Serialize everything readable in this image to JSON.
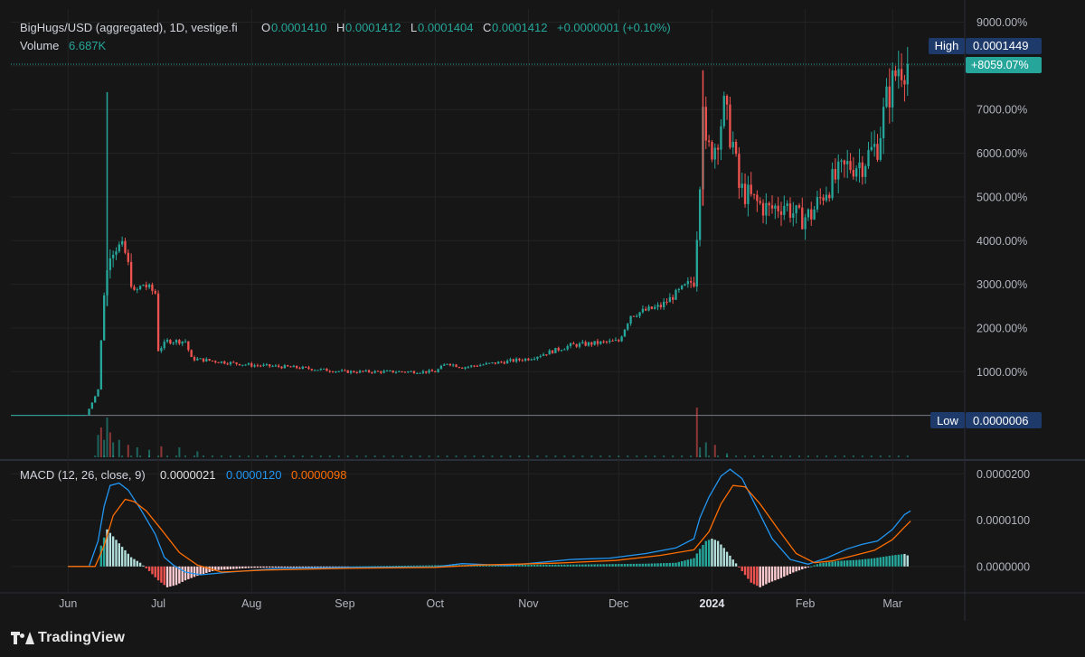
{
  "legend": {
    "symbol": "BigHugs/USD (aggregated), 1D, vestige.fi",
    "o_label": "O",
    "o_value": "0.0001410",
    "h_label": "H",
    "h_value": "0.0001412",
    "l_label": "L",
    "l_value": "0.0001404",
    "c_label": "C",
    "c_value": "0.0001412",
    "change": "+0.0000001 (+0.10%)",
    "volume_label": "Volume",
    "volume_value": "6.687K"
  },
  "macd_legend": {
    "label": "MACD (12, 26, close, 9)",
    "hist_value": "0.0000021",
    "macd_value": "0.0000120",
    "signal_value": "0.0000098"
  },
  "badges": {
    "high_label": "High",
    "high_value": "0.0001449",
    "current_pct": "+8059.07%",
    "low_label": "Low",
    "low_value": "0.0000006"
  },
  "colors": {
    "up": "#26a69a",
    "down": "#ef5350",
    "macd": "#2196f3",
    "signal": "#ff6d00",
    "hist_pos": "#b2dfdb",
    "hist_neg": "#ffcdd2",
    "hist_pos_strong": "#26a69a",
    "hist_neg_strong": "#ef5350"
  },
  "footer": {
    "brand": "TradingView"
  },
  "chart_data": [
    {
      "type": "candlestick",
      "title": "BigHugs/USD (aggregated), 1D, vestige.fi",
      "y_scale": "percent",
      "y_ticks": [
        "9000.00%",
        "7000.00%",
        "6000.00%",
        "5000.00%",
        "4000.00%",
        "3000.00%",
        "2000.00%",
        "1000.00%"
      ],
      "y_tick_values": [
        9000,
        7000,
        6000,
        5000,
        4000,
        3000,
        2000,
        1000
      ],
      "ylim": [
        -1000,
        9300
      ],
      "x_ticks": [
        "Jun",
        "Jul",
        "Aug",
        "Sep",
        "Oct",
        "Nov",
        "Dec",
        "2024",
        "Feb",
        "Mar"
      ],
      "x_tick_dates": [
        "2023-06-01",
        "2023-07-01",
        "2023-08-01",
        "2023-09-01",
        "2023-10-01",
        "2023-11-01",
        "2023-12-01",
        "2024-01-01",
        "2024-02-01",
        "2024-03-01"
      ],
      "series_path_pct": [
        [
          "2023-06-07",
          0
        ],
        [
          "2023-06-11",
          600
        ],
        [
          "2023-06-13",
          2800
        ],
        [
          "2023-06-15",
          3800
        ],
        [
          "2023-06-17",
          3900
        ],
        [
          "2023-06-20",
          3700
        ],
        [
          "2023-06-23",
          2800
        ],
        [
          "2023-06-26",
          3000
        ],
        [
          "2023-06-30",
          2800
        ],
        [
          "2023-07-01",
          1500
        ],
        [
          "2023-07-04",
          1700
        ],
        [
          "2023-07-10",
          1700
        ],
        [
          "2023-07-12",
          1300
        ],
        [
          "2023-08-01",
          1150
        ],
        [
          "2023-08-15",
          1100
        ],
        [
          "2023-09-01",
          1000
        ],
        [
          "2023-10-01",
          1000
        ],
        [
          "2023-10-05",
          1200
        ],
        [
          "2023-10-10",
          1100
        ],
        [
          "2023-11-01",
          1300
        ],
        [
          "2023-11-15",
          1600
        ],
        [
          "2023-12-01",
          1700
        ],
        [
          "2023-12-05",
          2300
        ],
        [
          "2023-12-15",
          2500
        ],
        [
          "2023-12-24",
          3000
        ],
        [
          "2023-12-26",
          3100
        ],
        [
          "2023-12-27",
          4200
        ],
        [
          "2023-12-28",
          5500
        ],
        [
          "2023-12-29",
          7400
        ],
        [
          "2023-12-30",
          6000
        ],
        [
          "2024-01-02",
          6200
        ],
        [
          "2024-01-05",
          7000
        ],
        [
          "2024-01-08",
          6200
        ],
        [
          "2024-01-10",
          5200
        ],
        [
          "2024-01-15",
          4900
        ],
        [
          "2024-01-20",
          4700
        ],
        [
          "2024-01-25",
          4850
        ],
        [
          "2024-01-30",
          4500
        ],
        [
          "2024-02-03",
          4600
        ],
        [
          "2024-02-08",
          5200
        ],
        [
          "2024-02-15",
          5700
        ],
        [
          "2024-02-20",
          5800
        ],
        [
          "2024-02-25",
          6200
        ],
        [
          "2024-02-28",
          7200
        ],
        [
          "2024-03-03",
          8000
        ],
        [
          "2024-03-06",
          8059
        ]
      ],
      "high": "0.0001449",
      "low": "0.0000006",
      "current_pct": "+8059.07%"
    },
    {
      "type": "bar",
      "title": "Volume",
      "last_value": "6.687K",
      "spikes": [
        {
          "date": "2023-06-11",
          "rel": 0.45
        },
        {
          "date": "2023-06-12",
          "rel": 0.6
        },
        {
          "date": "2023-06-13",
          "rel": 0.35
        },
        {
          "date": "2023-06-14",
          "rel": 0.8
        },
        {
          "date": "2023-06-15",
          "rel": 0.5
        },
        {
          "date": "2023-06-16",
          "rel": 0.3
        },
        {
          "date": "2023-06-18",
          "rel": 0.35
        },
        {
          "date": "2023-06-21",
          "rel": 0.25
        },
        {
          "date": "2023-06-24",
          "rel": 0.2
        },
        {
          "date": "2023-06-28",
          "rel": 0.15
        },
        {
          "date": "2023-07-02",
          "rel": 0.22
        },
        {
          "date": "2023-07-08",
          "rel": 0.2
        },
        {
          "date": "2023-07-14",
          "rel": 0.12
        },
        {
          "date": "2023-12-27",
          "rel": 1.0
        },
        {
          "date": "2023-12-28",
          "rel": 0.2
        },
        {
          "date": "2023-12-30",
          "rel": 0.3
        },
        {
          "date": "2024-01-02",
          "rel": 0.25
        },
        {
          "date": "2024-01-06",
          "rel": 0.08
        }
      ]
    },
    {
      "type": "line",
      "title": "MACD (12, 26, close, 9)",
      "y_ticks": [
        "0.0000200",
        "0.0000100",
        "0.0000000"
      ],
      "y_tick_values": [
        2e-05,
        1e-05,
        0
      ],
      "ylim": [
        -5.5e-06,
        2.28e-05
      ],
      "series": [
        {
          "name": "MACD",
          "points": [
            [
              "2023-06-01",
              0
            ],
            [
              "2023-06-08",
              0
            ],
            [
              "2023-06-11",
              5.5e-06
            ],
            [
              "2023-06-13",
              1.3e-05
            ],
            [
              "2023-06-15",
              1.75e-05
            ],
            [
              "2023-06-18",
              1.8e-05
            ],
            [
              "2023-06-21",
              1.65e-05
            ],
            [
              "2023-06-25",
              1.25e-05
            ],
            [
              "2023-06-30",
              7e-06
            ],
            [
              "2023-07-03",
              2e-06
            ],
            [
              "2023-07-06",
              3e-07
            ],
            [
              "2023-07-10",
              -1.2e-06
            ],
            [
              "2023-07-15",
              -1.8e-06
            ],
            [
              "2023-07-25",
              -1.2e-06
            ],
            [
              "2023-08-10",
              -4e-07
            ],
            [
              "2023-09-01",
              -2e-07
            ],
            [
              "2023-10-01",
              -1e-07
            ],
            [
              "2023-10-10",
              6e-07
            ],
            [
              "2023-10-25",
              2e-07
            ],
            [
              "2023-11-15",
              1.5e-06
            ],
            [
              "2023-11-28",
              1.8e-06
            ],
            [
              "2023-12-10",
              2.8e-06
            ],
            [
              "2023-12-20",
              4e-06
            ],
            [
              "2023-12-26",
              6e-06
            ],
            [
              "2023-12-28",
              1.05e-05
            ],
            [
              "2023-12-31",
              1.5e-05
            ],
            [
              "2024-01-04",
              1.95e-05
            ],
            [
              "2024-01-07",
              2.1e-05
            ],
            [
              "2024-01-11",
              1.9e-05
            ],
            [
              "2024-01-16",
              1.25e-05
            ],
            [
              "2024-01-21",
              6e-06
            ],
            [
              "2024-01-27",
              1.5e-06
            ],
            [
              "2024-02-02",
              5e-07
            ],
            [
              "2024-02-08",
              1.8e-06
            ],
            [
              "2024-02-15",
              3.8e-06
            ],
            [
              "2024-02-20",
              4.8e-06
            ],
            [
              "2024-02-25",
              5.5e-06
            ],
            [
              "2024-03-01",
              8e-06
            ],
            [
              "2024-03-05",
              1.12e-05
            ],
            [
              "2024-03-07",
              1.2e-05
            ]
          ]
        },
        {
          "name": "Signal",
          "points": [
            [
              "2023-06-01",
              0
            ],
            [
              "2023-06-10",
              0
            ],
            [
              "2023-06-13",
              4.5e-06
            ],
            [
              "2023-06-16",
              1.1e-05
            ],
            [
              "2023-06-20",
              1.45e-05
            ],
            [
              "2023-06-23",
              1.4e-05
            ],
            [
              "2023-06-27",
              1.2e-05
            ],
            [
              "2023-07-02",
              8e-06
            ],
            [
              "2023-07-08",
              3e-06
            ],
            [
              "2023-07-14",
              3e-07
            ],
            [
              "2023-07-22",
              -1.2e-06
            ],
            [
              "2023-08-05",
              -8e-07
            ],
            [
              "2023-09-01",
              -4e-07
            ],
            [
              "2023-10-01",
              -2e-07
            ],
            [
              "2023-10-15",
              3e-07
            ],
            [
              "2023-11-10",
              7e-07
            ],
            [
              "2023-11-30",
              1.3e-06
            ],
            [
              "2023-12-15",
              2.4e-06
            ],
            [
              "2023-12-26",
              3.6e-06
            ],
            [
              "2023-12-31",
              7.5e-06
            ],
            [
              "2024-01-04",
              1.35e-05
            ],
            [
              "2024-01-08",
              1.75e-05
            ],
            [
              "2024-01-12",
              1.72e-05
            ],
            [
              "2024-01-17",
              1.35e-05
            ],
            [
              "2024-01-23",
              8e-06
            ],
            [
              "2024-01-29",
              2.8e-06
            ],
            [
              "2024-02-04",
              8e-07
            ],
            [
              "2024-02-10",
              1.2e-06
            ],
            [
              "2024-02-18",
              2.5e-06
            ],
            [
              "2024-02-24",
              3.5e-06
            ],
            [
              "2024-03-01",
              5.8e-06
            ],
            [
              "2024-03-05",
              8.5e-06
            ],
            [
              "2024-03-07",
              9.8e-06
            ]
          ]
        }
      ],
      "histogram": [
        [
          "2023-06-12",
          4.5e-06
        ],
        [
          "2023-06-14",
          8e-06
        ],
        [
          "2023-06-16",
          6.5e-06
        ],
        [
          "2023-06-18",
          5e-06
        ],
        [
          "2023-06-20",
          3.5e-06
        ],
        [
          "2023-06-22",
          2e-06
        ],
        [
          "2023-06-25",
          8e-07
        ],
        [
          "2023-06-28",
          -1e-06
        ],
        [
          "2023-07-01",
          -3e-06
        ],
        [
          "2023-07-04",
          -4.5e-06
        ],
        [
          "2023-07-07",
          -4e-06
        ],
        [
          "2023-07-10",
          -3e-06
        ],
        [
          "2023-07-14",
          -2e-06
        ],
        [
          "2023-07-20",
          -8e-07
        ],
        [
          "2023-08-01",
          -3e-07
        ],
        [
          "2023-10-05",
          3e-07
        ],
        [
          "2023-11-15",
          4e-07
        ],
        [
          "2023-12-10",
          6e-07
        ],
        [
          "2023-12-20",
          8e-07
        ],
        [
          "2023-12-26",
          1.8e-06
        ],
        [
          "2023-12-28",
          3.8e-06
        ],
        [
          "2023-12-30",
          5.5e-06
        ],
        [
          "2024-01-01",
          6e-06
        ],
        [
          "2024-01-03",
          5.5e-06
        ],
        [
          "2024-01-05",
          4e-06
        ],
        [
          "2024-01-08",
          1.5e-06
        ],
        [
          "2024-01-11",
          -1e-06
        ],
        [
          "2024-01-14",
          -3.5e-06
        ],
        [
          "2024-01-17",
          -4.5e-06
        ],
        [
          "2024-01-20",
          -3.5e-06
        ],
        [
          "2024-01-24",
          -2.5e-06
        ],
        [
          "2024-01-28",
          -1.3e-06
        ],
        [
          "2024-02-01",
          -4e-07
        ],
        [
          "2024-02-06",
          7e-07
        ],
        [
          "2024-02-12",
          1.2e-06
        ],
        [
          "2024-02-18",
          1.4e-06
        ],
        [
          "2024-02-24",
          1.8e-06
        ],
        [
          "2024-03-01",
          2.4e-06
        ],
        [
          "2024-03-05",
          2.7e-06
        ],
        [
          "2024-03-07",
          2.1e-06
        ]
      ]
    }
  ]
}
